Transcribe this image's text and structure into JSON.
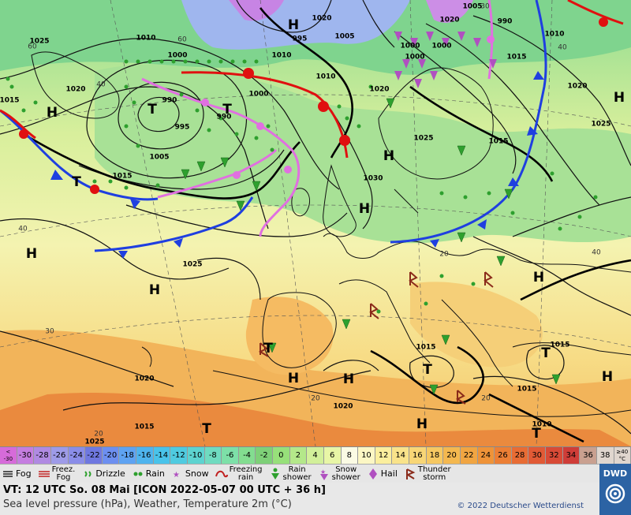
{
  "map": {
    "pressure_systems": [
      {
        "label": "H"
      },
      {
        "label": "H"
      },
      {
        "label": "H"
      },
      {
        "label": "H"
      },
      {
        "label": "H"
      },
      {
        "label": "H"
      },
      {
        "label": "H"
      },
      {
        "label": "H"
      },
      {
        "label": "H"
      },
      {
        "label": "H"
      },
      {
        "label": "H"
      },
      {
        "label": "H"
      },
      {
        "label": "T"
      },
      {
        "label": "T"
      },
      {
        "label": "T"
      },
      {
        "label": "T"
      },
      {
        "label": "T"
      },
      {
        "label": "T"
      },
      {
        "label": "T"
      },
      {
        "label": "T"
      }
    ],
    "isobar_labels": [
      "1025",
      "1010",
      "1020",
      "1015",
      "990",
      "995",
      "1005",
      "1000",
      "1020",
      "1010",
      "1000",
      "990",
      "995",
      "1005",
      "1000",
      "1010",
      "1015",
      "1020",
      "1025",
      "1030",
      "1025",
      "1025",
      "1020",
      "1020",
      "1015",
      "1015",
      "1015",
      "1015",
      "1020",
      "1015",
      "1010",
      "1015",
      "1025",
      "1020",
      "1000",
      "1010",
      "1005",
      "1000",
      "990"
    ],
    "temperature_labels": [
      "60",
      "40",
      "30",
      "60",
      "40",
      "30",
      "20",
      "20",
      "40",
      "20",
      "40",
      "20"
    ]
  },
  "scale": {
    "first_label": "<\n-30",
    "values": [
      "-30",
      "-28",
      "-26",
      "-24",
      "-22",
      "-20",
      "-18",
      "-16",
      "-14",
      "-12",
      "-10",
      "-8",
      "-6",
      "-4",
      "-2",
      "0",
      "2",
      "4",
      "6",
      "8",
      "10",
      "12",
      "14",
      "16",
      "18",
      "20",
      "22",
      "24",
      "26",
      "28",
      "30",
      "32",
      "34",
      "36",
      "38"
    ],
    "last_label": "≥40\n°C",
    "colors": [
      "#d66bd9",
      "#c57ee0",
      "#b08ae2",
      "#9e9be8",
      "#8a8de8",
      "#6f78e0",
      "#6d8ff0",
      "#5ea3f2",
      "#4eb4ee",
      "#49c3ea",
      "#4fcbe0",
      "#5dd3d0",
      "#6fdbc0",
      "#7de0a8",
      "#83dd90",
      "#7ed078",
      "#97e07a",
      "#b4e88a",
      "#d2f09a",
      "#e8f6a6",
      "#fbfbe4",
      "#fcf7c4",
      "#fbef9e",
      "#f9e38a",
      "#f8d676",
      "#f6c862",
      "#f4b84f",
      "#f1a542",
      "#ef9338",
      "#ec7f35",
      "#e86c34",
      "#e15a35",
      "#d84a36",
      "#cf3d38",
      "#c9a090",
      "#e0d6ce"
    ]
  },
  "legend": {
    "items": [
      {
        "label": "Fog",
        "icon": "fog-icon"
      },
      {
        "label": "Freez.\nFog",
        "icon": "freezing-fog-icon"
      },
      {
        "label": "Drizzle",
        "icon": "drizzle-icon"
      },
      {
        "label": "Rain",
        "icon": "rain-icon"
      },
      {
        "label": "Snow",
        "icon": "snow-icon"
      },
      {
        "label": "Freezing\nrain",
        "icon": "freezing-rain-icon"
      },
      {
        "label": "Rain\nshower",
        "icon": "rain-shower-icon"
      },
      {
        "label": "Snow\nshower",
        "icon": "snow-shower-icon"
      },
      {
        "label": "Hail",
        "icon": "hail-icon"
      },
      {
        "label": "Thunder\nstorm",
        "icon": "thunderstorm-icon"
      }
    ]
  },
  "info": {
    "valid_time": "VT: 12 UTC So.  08 Mai [ICON 2022-05-07  00 UTC + 36 h]",
    "subtitle": "Sea level pressure (hPa), Weather, Temperature 2m (°C)",
    "copyright": "© 2022 Deutscher Wetterdienst"
  },
  "logo": {
    "text": "DWD"
  },
  "colors": {
    "cold_front": "#1f3fe0",
    "warm_front": "#e01010",
    "occlusion": "#e070e0",
    "logo_bg": "#2c63a4"
  }
}
